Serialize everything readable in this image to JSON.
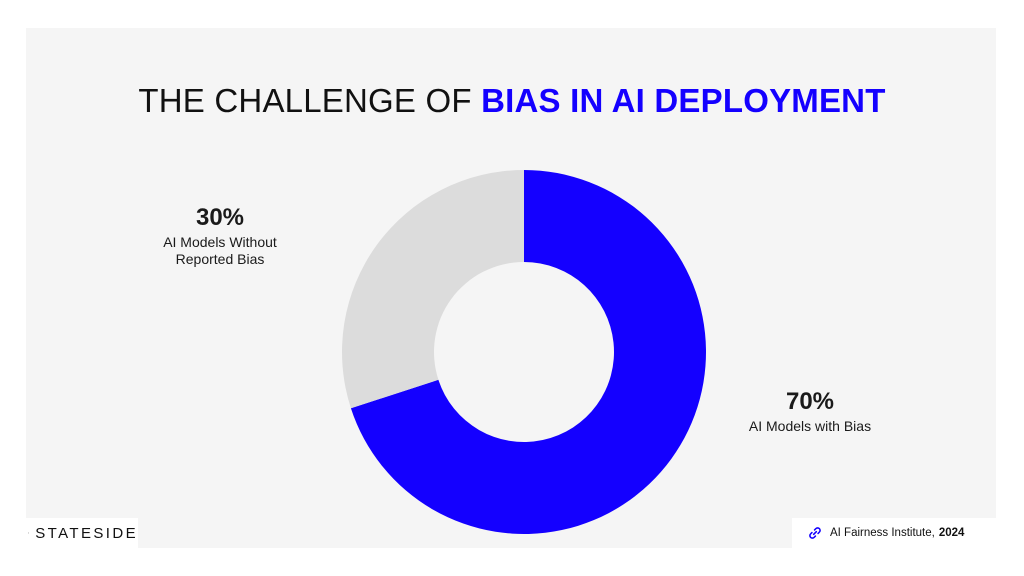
{
  "title": {
    "prefix": "THE CHALLENGE OF",
    "highlight": "BIAS IN AI DEPLOYMENT"
  },
  "chart_data": {
    "type": "pie",
    "donut": true,
    "categories": [
      "AI Models with Bias",
      "AI Models Without Reported Bias"
    ],
    "values": [
      70,
      30
    ],
    "colors": [
      "#1400ff",
      "#dcdcdc"
    ],
    "labels": [
      {
        "pct": "70%",
        "text": "AI Models with Bias"
      },
      {
        "pct": "30%",
        "text": "AI Models Without Reported Bias"
      }
    ]
  },
  "brand": {
    "name": "STATESIDE",
    "icon": "star-icon"
  },
  "source": {
    "org": "AI Fairness Institute,",
    "year": "2024",
    "icon": "link-icon"
  },
  "colors": {
    "background": "#f5f5f5",
    "accent": "#1400ff",
    "remainder": "#dcdcdc"
  }
}
